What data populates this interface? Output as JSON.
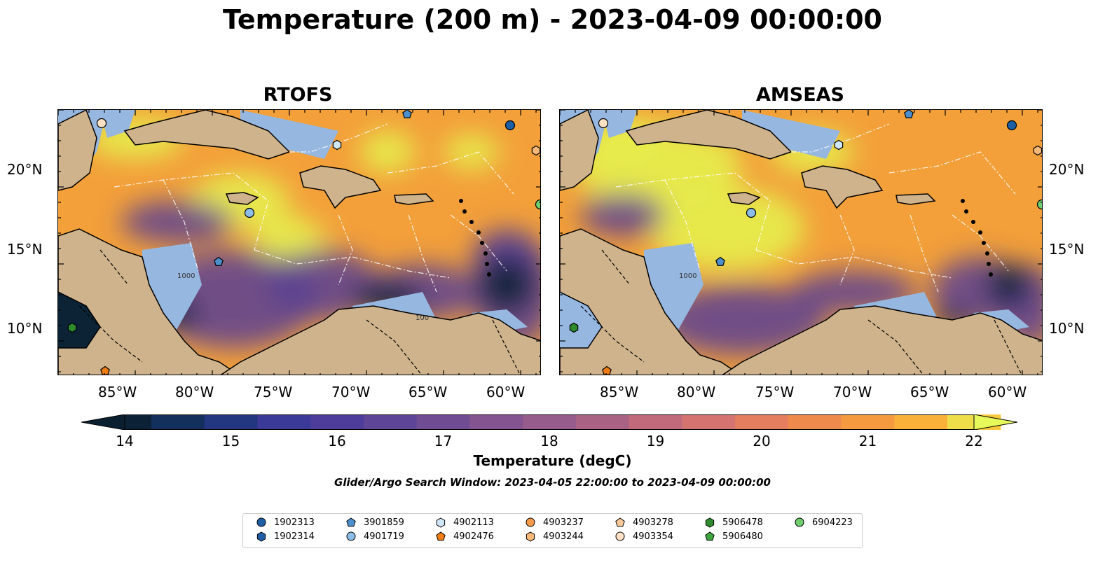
{
  "suptitle": "Temperature (200 m) - 2023-04-09 00:00:00",
  "panels": [
    {
      "title": "RTOFS"
    },
    {
      "title": "AMSEAS"
    }
  ],
  "lat_labels": [
    "20°N",
    "15°N",
    "10°N"
  ],
  "lon_labels": [
    "85°W",
    "80°W",
    "75°W",
    "70°W",
    "65°W",
    "60°W"
  ],
  "colorbar": {
    "title": "Temperature (degC)",
    "tick_labels": [
      "14",
      "15",
      "16",
      "17",
      "18",
      "19",
      "20",
      "21",
      "22"
    ],
    "range": [
      14,
      22
    ],
    "colors": [
      "#0b2236",
      "#132f5c",
      "#233780",
      "#3b3a98",
      "#4e3d9b",
      "#5e4597",
      "#704c93",
      "#835490",
      "#965c8c",
      "#aa6284",
      "#c06a7b",
      "#d4736f",
      "#e47e5f",
      "#ef8a4d",
      "#f69a40",
      "#fab13a",
      "#f8c83d",
      "#eedf4a"
    ],
    "extend_low_color": "#0a1f30",
    "extend_high_color": "#e6f85a"
  },
  "contour_labels": [
    "1000",
    "100"
  ],
  "window_note": "Glider/Argo Search Window: 2023-04-05 22:00:00 to 2023-04-09 00:00:00",
  "legend": [
    {
      "id": "1902313",
      "shape": "circle",
      "color": "#1f5fa5"
    },
    {
      "id": "1902314",
      "shape": "hexagon",
      "color": "#1f5fa5"
    },
    {
      "id": "3901859",
      "shape": "pentagon",
      "color": "#4b90cc"
    },
    {
      "id": "4901719",
      "shape": "circle",
      "color": "#8bbde6"
    },
    {
      "id": "4902113",
      "shape": "hexagon",
      "color": "#cfe6f7"
    },
    {
      "id": "4902476",
      "shape": "pentagon",
      "color": "#f07d14"
    },
    {
      "id": "4903237",
      "shape": "circle",
      "color": "#f59a4a"
    },
    {
      "id": "4903244",
      "shape": "hexagon",
      "color": "#f8b879"
    },
    {
      "id": "4903278",
      "shape": "pentagon",
      "color": "#f9c99b"
    },
    {
      "id": "4903354",
      "shape": "circle",
      "color": "#fde1c4"
    },
    {
      "id": "5906478",
      "shape": "hexagon",
      "color": "#2e8b2e"
    },
    {
      "id": "5906480",
      "shape": "pentagon",
      "color": "#3ea63e"
    },
    {
      "id": "6904223",
      "shape": "circle",
      "color": "#6fcf6f"
    }
  ],
  "map_colors": {
    "land": "#cfb38c",
    "shallow": "#96b7e0",
    "warm": "#f3a03a",
    "hot": "#e6f04e",
    "cool": "#5b3f93",
    "cold": "#0c2336"
  }
}
